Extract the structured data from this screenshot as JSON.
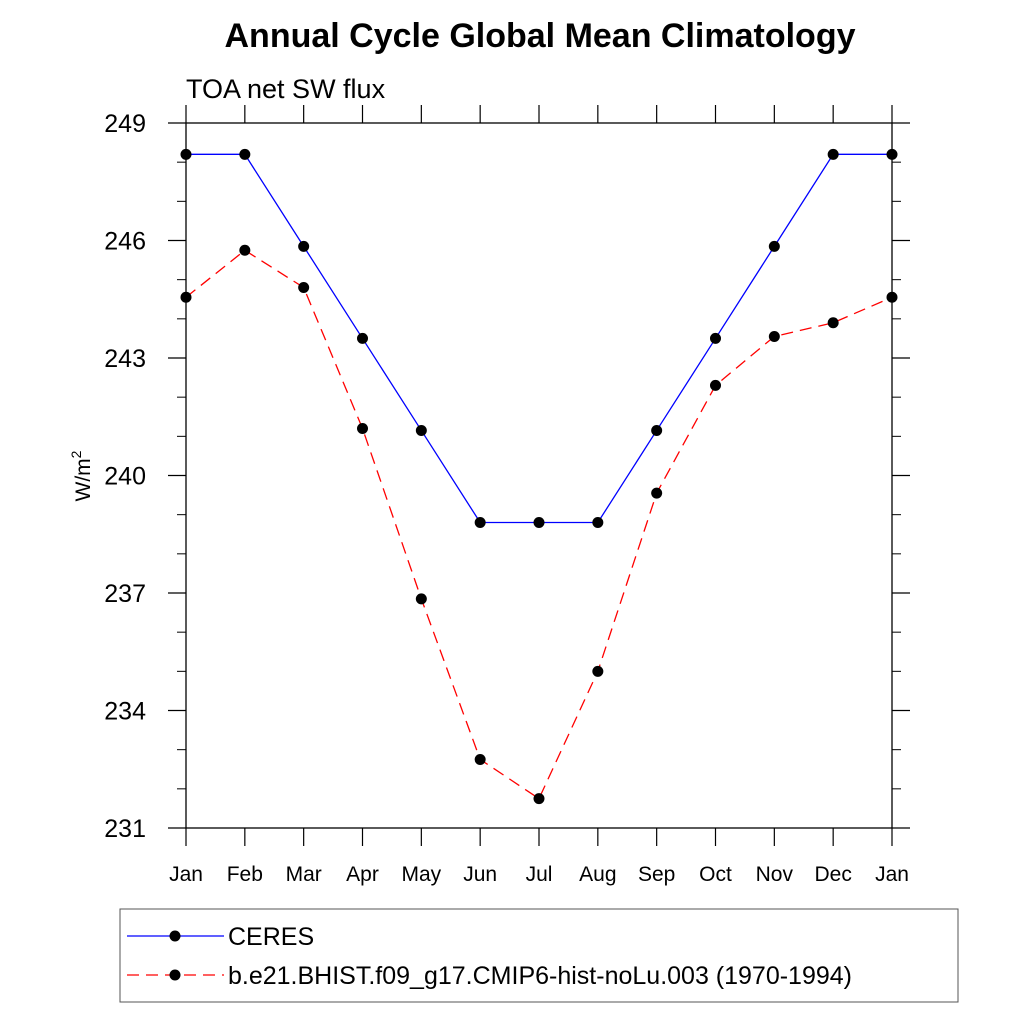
{
  "chart_data": {
    "type": "line",
    "title": "Annual Cycle Global Mean Climatology",
    "subtitle": "TOA net SW flux",
    "ylabel": "W/m",
    "ylabel_superscript": "2",
    "xlabel": "",
    "categories": [
      "Jan",
      "Feb",
      "Mar",
      "Apr",
      "May",
      "Jun",
      "Jul",
      "Aug",
      "Sep",
      "Oct",
      "Nov",
      "Dec",
      "Jan"
    ],
    "ylim": [
      231,
      249
    ],
    "yticks": [
      231,
      234,
      237,
      240,
      243,
      246,
      249
    ],
    "grid": false,
    "legend_position": "bottom",
    "series": [
      {
        "name": "CERES",
        "color": "#0000ff",
        "style": "solid",
        "marker": "filled-circle",
        "values": [
          248.2,
          248.2,
          245.85,
          243.5,
          241.15,
          238.8,
          238.8,
          238.8,
          241.15,
          243.5,
          245.85,
          248.2,
          248.2
        ]
      },
      {
        "name": "b.e21.BHIST.f09_g17.CMIP6-hist-noLu.003 (1970-1994)",
        "color": "#ff0000",
        "style": "dashed",
        "marker": "filled-circle",
        "values": [
          244.55,
          245.75,
          244.8,
          241.2,
          236.85,
          232.75,
          231.75,
          235.0,
          239.55,
          242.3,
          243.55,
          243.9,
          244.55
        ]
      }
    ]
  }
}
